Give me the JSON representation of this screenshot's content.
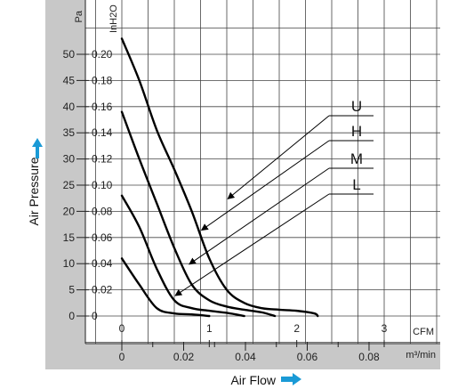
{
  "chart_data": {
    "type": "line",
    "pa_ticks": [
      "0",
      "5",
      "10",
      "15",
      "20",
      "25",
      "30",
      "35",
      "40",
      "45",
      "50"
    ],
    "inh2o_ticks": [
      "0",
      "0.02",
      "0.04",
      "0.06",
      "0.08",
      "0.10",
      "0.12",
      "0.14",
      "0.16",
      "0.18",
      "0.20"
    ],
    "cfm_ticks": [
      "0",
      "1",
      "2",
      "3"
    ],
    "m3min_ticks": [
      "0",
      "0.02",
      "0.04",
      "0.06",
      "0.08"
    ],
    "units": {
      "pa": "Pa",
      "inh2o": "InH2O",
      "cfm": "CFM",
      "m3min": "m³/min"
    },
    "xlabel": "Air Flow",
    "ylabel": "Air Pressure",
    "xlim_cfm": [
      0,
      3
    ],
    "ylim_pa": [
      0,
      50
    ],
    "accent_color": "#1a9ad6",
    "series": [
      {
        "name": "U",
        "points": [
          [
            0,
            53
          ],
          [
            0.2,
            45
          ],
          [
            0.4,
            35.5
          ],
          [
            0.6,
            28
          ],
          [
            0.8,
            20
          ],
          [
            1.0,
            11
          ],
          [
            1.2,
            5
          ],
          [
            1.4,
            2.5
          ],
          [
            1.6,
            1.5
          ],
          [
            1.8,
            1.2
          ],
          [
            2.0,
            1.0
          ],
          [
            2.2,
            0.5
          ],
          [
            2.24,
            0
          ]
        ]
      },
      {
        "name": "H",
        "points": [
          [
            0,
            39
          ],
          [
            0.2,
            30
          ],
          [
            0.4,
            21.5
          ],
          [
            0.6,
            13
          ],
          [
            0.8,
            6
          ],
          [
            1.0,
            3
          ],
          [
            1.2,
            1.8
          ],
          [
            1.4,
            1.2
          ],
          [
            1.6,
            0.7
          ],
          [
            1.75,
            0
          ]
        ]
      },
      {
        "name": "M",
        "points": [
          [
            0,
            23
          ],
          [
            0.2,
            17
          ],
          [
            0.4,
            9
          ],
          [
            0.6,
            3
          ],
          [
            0.8,
            1.5
          ],
          [
            1.0,
            1.0
          ],
          [
            1.2,
            0.6
          ],
          [
            1.4,
            0
          ]
        ]
      },
      {
        "name": "L",
        "points": [
          [
            0,
            11
          ],
          [
            0.2,
            6
          ],
          [
            0.4,
            1.5
          ],
          [
            0.6,
            0.5
          ],
          [
            0.8,
            0.3
          ],
          [
            1.0,
            0
          ]
        ]
      }
    ],
    "grid": true
  }
}
